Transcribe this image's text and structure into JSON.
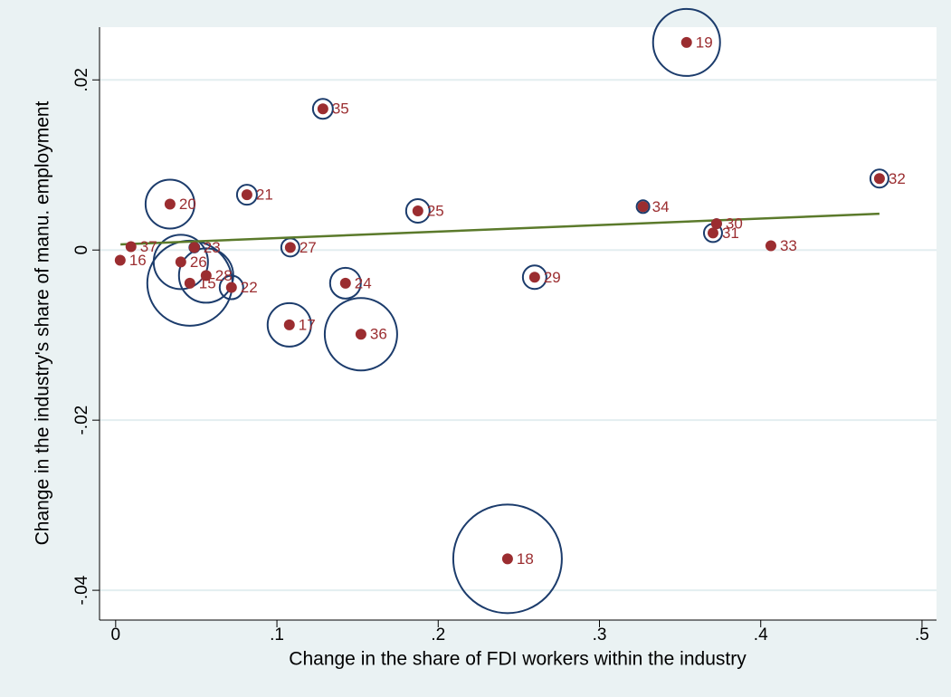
{
  "chart_data": {
    "type": "scatter",
    "xlabel": "Change in the share of FDI workers within the industry",
    "ylabel": "Change in the industry's share of manu. employment",
    "labels": [
      "19",
      "35",
      "32",
      "21",
      "20",
      "25",
      "34",
      "30",
      "31",
      "33",
      "27",
      "37",
      "16",
      "23",
      "26",
      "15",
      "28",
      "22",
      "24",
      "17",
      "36",
      "29",
      "18"
    ],
    "x": [
      0.354,
      0.1285,
      0.4736,
      0.0814,
      0.0337,
      0.1874,
      0.327,
      0.3726,
      0.3704,
      0.4063,
      0.1083,
      0.0095,
      0.0028,
      0.0488,
      0.0404,
      0.046,
      0.0561,
      0.0718,
      0.1425,
      0.1077,
      0.1521,
      0.2598,
      0.243
    ],
    "y": [
      0.0244,
      0.0166,
      0.0084,
      0.0065,
      0.0054,
      0.0046,
      0.0051,
      0.0031,
      0.002,
      0.0005,
      0.0003,
      0.0004,
      -0.0012,
      0.0003,
      -0.0014,
      -0.0039,
      -0.003,
      -0.0044,
      -0.0039,
      -0.0088,
      -0.0099,
      -0.0032,
      -0.0363
    ],
    "sizes": [
      13.7,
      1.21,
      1.0,
      1.21,
      7.29,
      1.69,
      0.49,
      0.25,
      1.0,
      0.2,
      1.0,
      0.2,
      0.2,
      0.3,
      9.0,
      22.1,
      9.0,
      1.69,
      2.89,
      5.76,
      16.0,
      1.69,
      36.0
    ],
    "marker_color": "#9b2d30",
    "bubble_color": "#1c3c6c",
    "fit": {
      "x": [
        0.003,
        0.4736
      ],
      "y": [
        0.00066,
        0.00426
      ],
      "color": "#5b7a2b"
    },
    "xlim": [
      -0.01,
      0.509
    ],
    "ylim": [
      -0.0435,
      0.0262
    ],
    "xticks": [
      0,
      {
        "value": 0.1,
        "label": ".1"
      },
      {
        "value": 0.2,
        "label": ".2"
      },
      {
        "value": 0.3,
        "label": ".3"
      },
      {
        "value": 0.4,
        "label": ".4"
      },
      {
        "value": 0.5,
        "label": ".5"
      }
    ],
    "yticks": [
      {
        "value": -0.04,
        "label": "-.04"
      },
      {
        "value": -0.02,
        "label": "-.02"
      },
      0,
      {
        "value": 0.02,
        "label": ".02"
      }
    ],
    "grid": true
  }
}
